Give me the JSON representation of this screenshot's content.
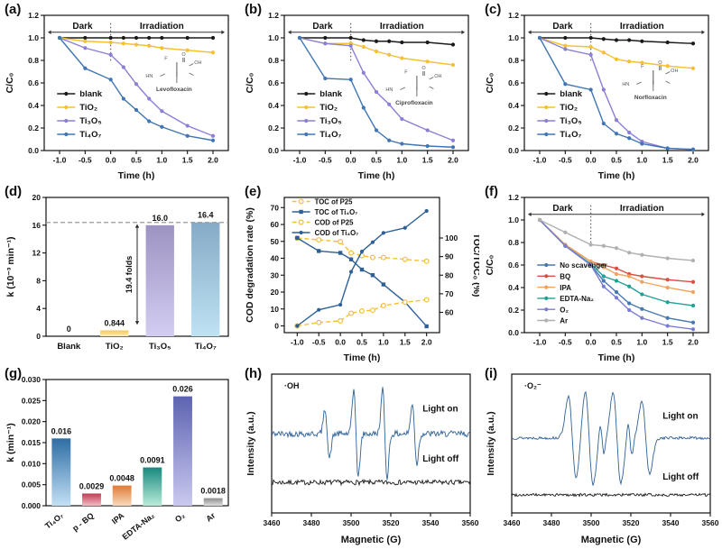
{
  "figure_background": "#ffffff",
  "chart_data": [
    {
      "id": "a",
      "panel_label": "(a)",
      "type": "line",
      "xlabel": "Time (h)",
      "ylabel": "C/C₀",
      "dark_label": "Dark",
      "irradiation_label": "Irradiation",
      "molecule": "Levofloxacin",
      "mol_pos": {
        "fx": 0.72,
        "fy": 0.4
      },
      "xlim": [
        -1.3,
        2.3
      ],
      "ylim": [
        0,
        1.2
      ],
      "xticks": [
        -1.0,
        -0.5,
        0.0,
        0.5,
        1.0,
        1.5,
        2.0
      ],
      "xtick_labels": [
        "-1.0",
        "-0.5",
        "0.0",
        "0.5",
        "1.0",
        "1.5",
        "2.0"
      ],
      "yticks": [
        0.0,
        0.2,
        0.4,
        0.6,
        0.8,
        1.0,
        1.2
      ],
      "ytick_labels": [
        "0.0",
        "0.2",
        "0.4",
        "0.6",
        "0.8",
        "1.0",
        "1.2"
      ],
      "x": [
        -1.0,
        -0.5,
        0.0,
        0.25,
        0.5,
        0.75,
        1.0,
        1.5,
        2.0
      ],
      "legend": {
        "fx": 0.07,
        "fy": 0.58,
        "dh": 15,
        "fs": 9.5
      },
      "series": [
        {
          "name": "blank",
          "color": "#1a1a1a",
          "marker": "circle",
          "values": [
            1.0,
            1.0,
            1.0,
            1.0,
            1.0,
            1.0,
            1.0,
            1.0,
            1.0
          ]
        },
        {
          "name": "TiO₂",
          "color": "#f5c032",
          "marker": "circle",
          "values": [
            1.0,
            0.97,
            0.96,
            0.95,
            0.94,
            0.93,
            0.91,
            0.89,
            0.87
          ]
        },
        {
          "name": "Ti₃O₅",
          "color": "#8b7fd6",
          "marker": "circle",
          "values": [
            1.0,
            0.91,
            0.85,
            0.74,
            0.59,
            0.46,
            0.35,
            0.22,
            0.13
          ]
        },
        {
          "name": "Ti₄O₇",
          "color": "#3f76b3",
          "marker": "circle",
          "values": [
            1.0,
            0.73,
            0.63,
            0.46,
            0.36,
            0.26,
            0.21,
            0.13,
            0.09
          ]
        }
      ]
    },
    {
      "id": "b",
      "panel_label": "(b)",
      "type": "line",
      "xlabel": "Time (h)",
      "ylabel": "C/C₀",
      "dark_label": "Dark",
      "irradiation_label": "Irradiation",
      "molecule": "Ciprofloxacin",
      "mol_pos": {
        "fx": 0.72,
        "fy": 0.5
      },
      "xlim": [
        -1.3,
        2.3
      ],
      "ylim": [
        0,
        1.2
      ],
      "xticks": [
        -1.0,
        -0.5,
        0.0,
        0.5,
        1.0,
        1.5,
        2.0
      ],
      "xtick_labels": [
        "-1.0",
        "-0.5",
        "0.0",
        "0.5",
        "1.0",
        "1.5",
        "2.0"
      ],
      "yticks": [
        0.0,
        0.2,
        0.4,
        0.6,
        0.8,
        1.0,
        1.2
      ],
      "ytick_labels": [
        "0.0",
        "0.2",
        "0.4",
        "0.6",
        "0.8",
        "1.0",
        "1.2"
      ],
      "x": [
        -1.0,
        -0.5,
        0.0,
        0.25,
        0.5,
        0.75,
        1.0,
        1.5,
        2.0
      ],
      "legend": {
        "fx": 0.07,
        "fy": 0.58,
        "dh": 15,
        "fs": 9.5
      },
      "series": [
        {
          "name": "blank",
          "color": "#1a1a1a",
          "marker": "circle",
          "values": [
            1.0,
            1.0,
            1.0,
            0.98,
            0.97,
            0.97,
            0.96,
            0.96,
            0.94
          ]
        },
        {
          "name": "TiO₂",
          "color": "#f5c032",
          "marker": "circle",
          "values": [
            1.0,
            0.95,
            0.95,
            0.92,
            0.88,
            0.85,
            0.82,
            0.79,
            0.76
          ]
        },
        {
          "name": "Ti₃O₅",
          "color": "#8b7fd6",
          "marker": "circle",
          "values": [
            1.0,
            0.95,
            0.93,
            0.69,
            0.52,
            0.41,
            0.28,
            0.18,
            0.09
          ]
        },
        {
          "name": "Ti₄O₇",
          "color": "#3f76b3",
          "marker": "circle",
          "values": [
            1.0,
            0.64,
            0.63,
            0.38,
            0.18,
            0.09,
            0.06,
            0.04,
            0.03
          ]
        }
      ]
    },
    {
      "id": "c",
      "panel_label": "(c)",
      "type": "line",
      "xlabel": "Time (h)",
      "ylabel": "C/C₀",
      "dark_label": "Dark",
      "irradiation_label": "Irradiation",
      "molecule": "Norfloxacin",
      "mol_pos": {
        "fx": 0.7,
        "fy": 0.46
      },
      "xlim": [
        -1.3,
        2.3
      ],
      "ylim": [
        0,
        1.2
      ],
      "xticks": [
        -1.0,
        -0.5,
        0.0,
        0.5,
        1.0,
        1.5,
        2.0
      ],
      "xtick_labels": [
        "-1.0",
        "-0.5",
        "0.0",
        "0.5",
        "1.0",
        "1.5",
        "2.0"
      ],
      "yticks": [
        0.0,
        0.2,
        0.4,
        0.6,
        0.8,
        1.0,
        1.2
      ],
      "ytick_labels": [
        "0.0",
        "0.2",
        "0.4",
        "0.6",
        "0.8",
        "1.0",
        "1.2"
      ],
      "x": [
        -1.0,
        -0.5,
        0.0,
        0.25,
        0.5,
        0.75,
        1.0,
        1.5,
        2.0
      ],
      "legend": {
        "fx": 0.07,
        "fy": 0.58,
        "dh": 15,
        "fs": 9.5
      },
      "series": [
        {
          "name": "blank",
          "color": "#1a1a1a",
          "marker": "circle",
          "values": [
            1.0,
            1.0,
            1.0,
            0.99,
            0.98,
            0.98,
            0.97,
            0.96,
            0.95
          ]
        },
        {
          "name": "TiO₂",
          "color": "#f5c032",
          "marker": "circle",
          "values": [
            1.0,
            0.93,
            0.92,
            0.87,
            0.81,
            0.79,
            0.78,
            0.75,
            0.73
          ]
        },
        {
          "name": "Ti₃O₅",
          "color": "#8b7fd6",
          "marker": "circle",
          "values": [
            1.0,
            0.9,
            0.85,
            0.54,
            0.27,
            0.16,
            0.08,
            0.02,
            0.01
          ]
        },
        {
          "name": "Ti₄O₇",
          "color": "#3f76b3",
          "marker": "circle",
          "values": [
            1.0,
            0.59,
            0.54,
            0.24,
            0.15,
            0.11,
            0.06,
            0.02,
            0.01
          ]
        }
      ]
    },
    {
      "id": "d",
      "panel_label": "(d)",
      "type": "bar",
      "ylabel": "k (10⁻³ min⁻¹)",
      "ylim": [
        0,
        20
      ],
      "yticks": [
        0,
        4,
        8,
        12,
        16,
        20
      ],
      "ytick_labels": [
        "0",
        "4",
        "8",
        "12",
        "16",
        "20"
      ],
      "categories": [
        "Blank",
        "TiO₂",
        "Ti₃O₅",
        "Ti₄O₇"
      ],
      "values": [
        0,
        0.844,
        16.0,
        16.4
      ],
      "value_labels": [
        "0",
        "0.844",
        "16.0",
        "16.4"
      ],
      "bar_colors": [
        [
          "#ffffff",
          "#ffffff"
        ],
        [
          "#f6c84e",
          "#fbecc0"
        ],
        [
          "#9d93c2",
          "#d3cdf2"
        ],
        [
          "#85aac6",
          "#bfe3f3"
        ]
      ],
      "dashed_line": 16.4,
      "fold_annotation": {
        "label": "19.4 folds",
        "x_slot": 2.0,
        "y0": 1.7,
        "y1": 16.1
      }
    },
    {
      "id": "e",
      "panel_label": "(e)",
      "type": "line",
      "xlabel": "Time (h)",
      "ylabel": "COD degradation rate (%)",
      "right_axis": {
        "label": "TOC/TOC₀ (%)",
        "ticks": [
          60,
          70,
          80,
          90,
          100
        ],
        "tick_labels": [
          "60",
          "70",
          "80",
          "90",
          "100"
        ]
      },
      "right_map": {
        "r0": 60,
        "l0": 8,
        "r1": 100,
        "l1": 52
      },
      "xlim": [
        -1.3,
        2.3
      ],
      "ylim": [
        -4,
        76
      ],
      "xticks": [
        -1.0,
        -0.5,
        0.0,
        0.5,
        1.0,
        1.5,
        2.0
      ],
      "xtick_labels": [
        "-1.0",
        "-0.5",
        "0.0",
        "0.5",
        "1.0",
        "1.5",
        "2.0"
      ],
      "yticks": [
        0,
        10,
        20,
        30,
        40,
        50,
        60,
        70
      ],
      "ytick_labels": [
        "0",
        "10",
        "20",
        "30",
        "40",
        "50",
        "60",
        "70"
      ],
      "x": [
        -1.0,
        -0.5,
        0.0,
        0.25,
        0.5,
        0.75,
        1.0,
        1.5,
        2.0
      ],
      "legend": {
        "fx": 0.05,
        "fy": 0.03,
        "dh": 11.5,
        "fs": 7.8
      },
      "series": [
        {
          "name": "TOC of P25",
          "color": "#f5c032",
          "marker": "circle-open",
          "dash": "5,3",
          "axis": "right",
          "values": [
            100,
            99,
            98,
            92,
            90.5,
            89.5,
            89.5,
            88.5,
            87.5
          ]
        },
        {
          "name": "TOC of Ti₄O₇",
          "color": "#2e6096",
          "marker": "square",
          "axis": "right",
          "values": [
            100,
            93,
            92,
            88.5,
            83,
            80,
            75,
            65.5,
            52.5
          ]
        },
        {
          "name": "COD of P25",
          "color": "#f5c032",
          "marker": "circle-open",
          "dash": "5,3",
          "values": [
            0,
            2,
            3,
            7.5,
            8.8,
            9.3,
            12,
            14,
            15.5
          ]
        },
        {
          "name": "COD of Ti₄O₇",
          "color": "#2e6096",
          "marker": "circle",
          "values": [
            0,
            9.5,
            12.5,
            32,
            44,
            49.5,
            55,
            58,
            68
          ]
        }
      ]
    },
    {
      "id": "f",
      "panel_label": "(f)",
      "type": "line",
      "xlabel": "Time (h)",
      "ylabel": "C/C₀",
      "dark_label": "Dark",
      "irradiation_label": "Irradiation",
      "xlim": [
        -1.3,
        2.3
      ],
      "ylim": [
        0,
        1.2
      ],
      "xticks": [
        -1.0,
        -0.5,
        0.0,
        0.5,
        1.0,
        1.5,
        2.0
      ],
      "xtick_labels": [
        "-1.0",
        "-0.5",
        "0.0",
        "0.5",
        "1.0",
        "1.5",
        "2.0"
      ],
      "yticks": [
        0.0,
        0.2,
        0.4,
        0.6,
        0.8,
        1.0,
        1.2
      ],
      "ytick_labels": [
        "0.0",
        "0.2",
        "0.4",
        "0.6",
        "0.8",
        "1.0",
        "1.2"
      ],
      "x": [
        -1.0,
        -0.5,
        0.0,
        0.25,
        0.5,
        0.75,
        1.0,
        1.5,
        2.0
      ],
      "legend": {
        "fx": 0.07,
        "fy": 0.5,
        "dh": 12.3,
        "fs": 8
      },
      "series": [
        {
          "name": "No scavenger",
          "color": "#4878b0",
          "marker": "circle",
          "values": [
            1.0,
            0.77,
            0.6,
            0.46,
            0.36,
            0.26,
            0.21,
            0.13,
            0.09
          ]
        },
        {
          "name": "BQ",
          "color": "#d94f43",
          "marker": "circle",
          "values": [
            1.0,
            0.78,
            0.63,
            0.6,
            0.57,
            0.52,
            0.5,
            0.47,
            0.45
          ]
        },
        {
          "name": "IPA",
          "color": "#f2a45c",
          "marker": "circle",
          "values": [
            1.0,
            0.78,
            0.63,
            0.58,
            0.52,
            0.5,
            0.45,
            0.4,
            0.36
          ]
        },
        {
          "name": "EDTA-Na₂",
          "color": "#21a095",
          "marker": "circle",
          "values": [
            1.0,
            0.77,
            0.61,
            0.5,
            0.46,
            0.41,
            0.34,
            0.27,
            0.24
          ]
        },
        {
          "name": "O₂",
          "color": "#7b7dd4",
          "marker": "circle",
          "values": [
            1.0,
            0.77,
            0.6,
            0.41,
            0.31,
            0.2,
            0.13,
            0.06,
            0.03
          ]
        },
        {
          "name": "Ar",
          "color": "#b0b0b0",
          "marker": "circle",
          "values": [
            1.0,
            0.89,
            0.78,
            0.77,
            0.75,
            0.71,
            0.69,
            0.66,
            0.64
          ]
        }
      ]
    },
    {
      "id": "g",
      "panel_label": "(g)",
      "type": "bar",
      "ylabel": "k (min⁻¹)",
      "ylim": [
        0,
        0.03
      ],
      "yticks": [
        0.0,
        0.005,
        0.01,
        0.015,
        0.02,
        0.025,
        0.03
      ],
      "ytick_labels": [
        "0.000",
        "0.005",
        "0.010",
        "0.015",
        "0.020",
        "0.025",
        "0.030"
      ],
      "categories": [
        "Ti₄O₇",
        "p - BQ",
        "IPA",
        "EDTA-Na₂",
        "O₂",
        "Ar"
      ],
      "values": [
        0.016,
        0.0029,
        0.0048,
        0.0091,
        0.026,
        0.0018
      ],
      "value_labels": [
        "0.016",
        "0.0029",
        "0.0048",
        "0.0091",
        "0.026",
        "0.0018"
      ],
      "bar_colors": [
        [
          "#2e6da4",
          "#c3e0f5"
        ],
        [
          "#c13b52",
          "#f2bcc4"
        ],
        [
          "#e07b36",
          "#f8dabc"
        ],
        [
          "#17897f",
          "#b9ecd9"
        ],
        [
          "#5d63b0",
          "#cac9f0"
        ],
        [
          "#8c8c8c",
          "#dedede"
        ]
      ],
      "rotate_labels": true
    },
    {
      "id": "h",
      "panel_label": "(h)",
      "type": "esr",
      "xlabel": "Magnetic (G)",
      "ylabel": "Intensity (a.u.)",
      "radical_label": "·OH",
      "xlim": [
        3460,
        3560
      ],
      "xticks": [
        3460,
        3480,
        3500,
        3520,
        3540,
        3560
      ],
      "xtick_labels": [
        "3460",
        "3480",
        "3500",
        "3520",
        "3540",
        "3560"
      ],
      "traces": [
        {
          "label": "Light on",
          "color": "#2f6296",
          "offset": 0.57,
          "noise": 0.022,
          "seed": 42,
          "label_fx": 0.76,
          "label_fy": 0.73,
          "peaks": [
            {
              "c": 3488,
              "a": 0.18,
              "w": 1.1
            },
            {
              "c": 3502.5,
              "a": 0.32,
              "w": 1.1
            },
            {
              "c": 3517,
              "a": 0.32,
              "w": 1.1
            },
            {
              "c": 3532,
              "a": 0.22,
              "w": 1.1
            }
          ]
        },
        {
          "label": "Light off",
          "color": "#1a1a1a",
          "offset": 0.22,
          "noise": 0.018,
          "seed": 7,
          "label_fx": 0.76,
          "label_fy": 0.37,
          "peaks": []
        }
      ]
    },
    {
      "id": "i",
      "panel_label": "(i)",
      "type": "esr",
      "xlabel": "Magnetic (G)",
      "ylabel": "Intensity (a.u.)",
      "radical_label": "·O₂⁻",
      "xlim": [
        3460,
        3560
      ],
      "xticks": [
        3460,
        3480,
        3500,
        3520,
        3540,
        3560
      ],
      "xtick_labels": [
        "3460",
        "3480",
        "3500",
        "3520",
        "3540",
        "3560"
      ],
      "traces": [
        {
          "label": "Light on",
          "color": "#2f6296",
          "offset": 0.54,
          "noise": 0.01,
          "seed": 13,
          "label_fx": 0.76,
          "label_fy": 0.68,
          "peaks": [
            {
              "c": 3490.5,
              "a": 0.3,
              "w": 2.0
            },
            {
              "c": 3499,
              "a": 0.34,
              "w": 2.0
            },
            {
              "c": 3505.5,
              "a": 0.12,
              "w": 1.0
            },
            {
              "c": 3513,
              "a": 0.32,
              "w": 2.0
            },
            {
              "c": 3519.5,
              "a": 0.12,
              "w": 1.0
            },
            {
              "c": 3527.5,
              "a": 0.26,
              "w": 2.0
            }
          ]
        },
        {
          "label": "Light off",
          "color": "#1a1a1a",
          "offset": 0.13,
          "noise": 0.01,
          "seed": 99,
          "label_fx": 0.76,
          "label_fy": 0.24,
          "peaks": []
        }
      ]
    }
  ]
}
